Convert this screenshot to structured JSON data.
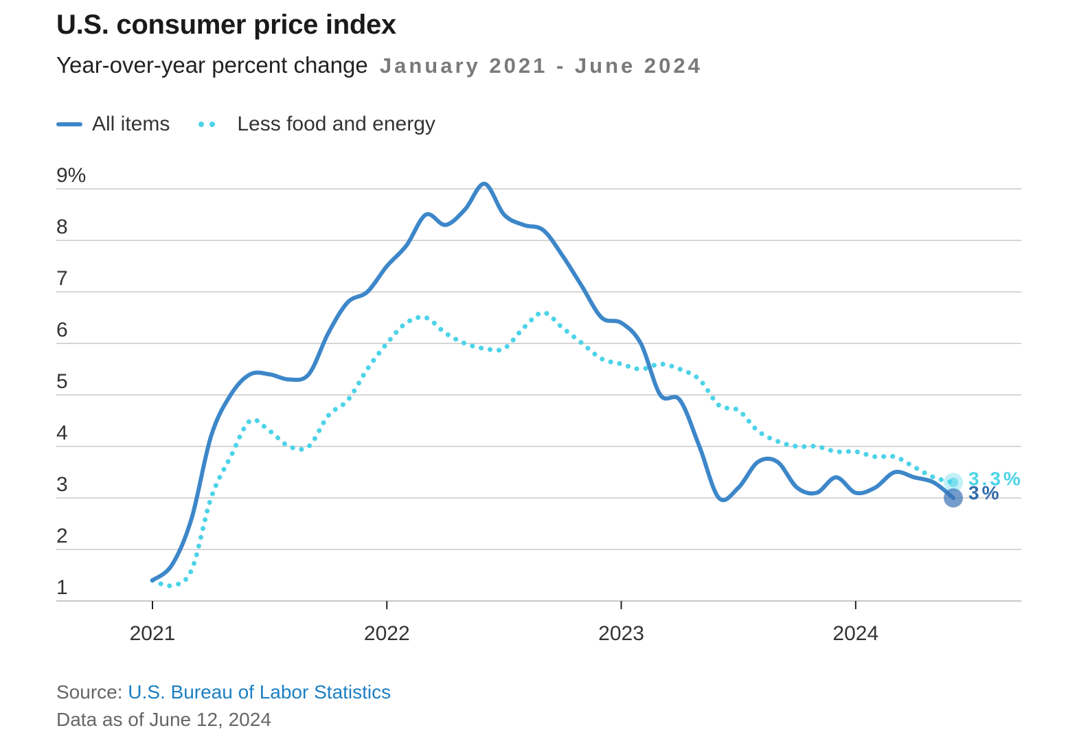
{
  "chart_data": {
    "type": "line",
    "title": "U.S. consumer price index",
    "subtitle": "Year-over-year percent change",
    "date_range": "January 2021 - June 2024",
    "ylabel": "",
    "xlabel": "",
    "ylim": [
      1,
      9
    ],
    "yticks": [
      "1",
      "2",
      "3",
      "4",
      "5",
      "6",
      "7",
      "8",
      "9%"
    ],
    "xticks": [
      "2021",
      "2022",
      "2023",
      "2024"
    ],
    "grid": true,
    "legend_position": "top-left",
    "x": [
      "2021-01",
      "2021-02",
      "2021-03",
      "2021-04",
      "2021-05",
      "2021-06",
      "2021-07",
      "2021-08",
      "2021-09",
      "2021-10",
      "2021-11",
      "2021-12",
      "2022-01",
      "2022-02",
      "2022-03",
      "2022-04",
      "2022-05",
      "2022-06",
      "2022-07",
      "2022-08",
      "2022-09",
      "2022-10",
      "2022-11",
      "2022-12",
      "2023-01",
      "2023-02",
      "2023-03",
      "2023-04",
      "2023-05",
      "2023-06",
      "2023-07",
      "2023-08",
      "2023-09",
      "2023-10",
      "2023-11",
      "2023-12",
      "2024-01",
      "2024-02",
      "2024-03",
      "2024-04",
      "2024-05",
      "2024-06"
    ],
    "series": [
      {
        "name": "All items",
        "color": "#3d87c9",
        "style": "solid",
        "end_label": "3%",
        "values": [
          1.4,
          1.7,
          2.6,
          4.2,
          5.0,
          5.4,
          5.4,
          5.3,
          5.4,
          6.2,
          6.8,
          7.0,
          7.5,
          7.9,
          8.5,
          8.3,
          8.6,
          9.1,
          8.5,
          8.3,
          8.2,
          7.7,
          7.1,
          6.5,
          6.4,
          6.0,
          5.0,
          4.9,
          4.0,
          3.0,
          3.2,
          3.7,
          3.7,
          3.2,
          3.1,
          3.4,
          3.1,
          3.2,
          3.5,
          3.4,
          3.3,
          3.0
        ]
      },
      {
        "name": "Less food and energy",
        "color": "#4dd3e8",
        "style": "dotted",
        "end_label": "3.3%",
        "values": [
          1.4,
          1.3,
          1.6,
          3.0,
          3.8,
          4.5,
          4.3,
          4.0,
          4.0,
          4.6,
          4.9,
          5.5,
          6.0,
          6.4,
          6.5,
          6.2,
          6.0,
          5.9,
          5.9,
          6.3,
          6.6,
          6.3,
          6.0,
          5.7,
          5.6,
          5.5,
          5.6,
          5.5,
          5.3,
          4.8,
          4.7,
          4.3,
          4.1,
          4.0,
          4.0,
          3.9,
          3.9,
          3.8,
          3.8,
          3.6,
          3.4,
          3.3
        ]
      }
    ]
  },
  "source": {
    "prefix": "Source:",
    "name": "U.S. Bureau of Labor Statistics"
  },
  "data_as_of": "Data as of June 12, 2024"
}
